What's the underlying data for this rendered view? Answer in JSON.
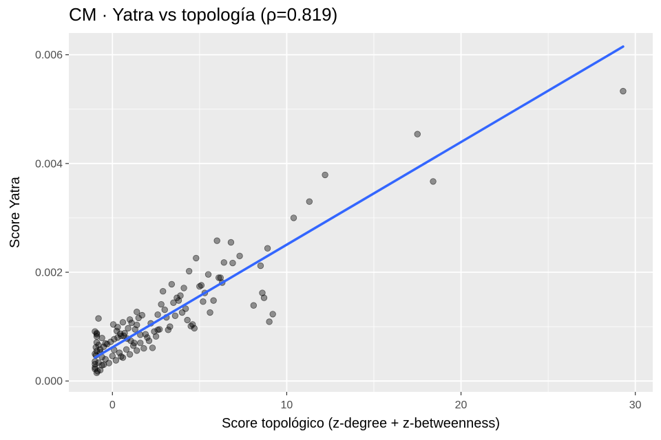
{
  "chart_data": {
    "type": "scatter",
    "title": "CM · Yatra vs topología (ρ=0.819)",
    "xlabel": "Score topológico (z-degree + z-betweenness)",
    "ylabel": "Score Yatra",
    "xlim": [
      -2.5,
      31.0
    ],
    "ylim": [
      -0.0002,
      0.0064
    ],
    "x_ticks": [
      0,
      10,
      20,
      30
    ],
    "x_tick_labels": [
      "0",
      "10",
      "20",
      "30"
    ],
    "y_ticks": [
      0.0,
      0.002,
      0.004,
      0.006
    ],
    "y_tick_labels": [
      "0.000",
      "0.002",
      "0.004",
      "0.006"
    ],
    "grid": true,
    "colors": {
      "panel": "#ebebeb",
      "grid": "#ffffff",
      "points": "#000000",
      "fit_line": "#3366ff"
    },
    "series": [
      {
        "kind": "points",
        "x": [
          29.3,
          17.5,
          18.4,
          12.2,
          11.3,
          10.4,
          9.2,
          9.0,
          8.9,
          8.7,
          8.6,
          8.5,
          8.1,
          6.0,
          6.8,
          7.3,
          6.4,
          6.9,
          6.1,
          5.3,
          5.6,
          5.0,
          6.3,
          4.8,
          4.4,
          4.1,
          3.9,
          3.4,
          3.7,
          2.9,
          4.3,
          4.6,
          4.2,
          3.1,
          2.6,
          5.8,
          5.2,
          5.1,
          4.0,
          3.6,
          3.2,
          2.7,
          2.4,
          2.2,
          1.9,
          1.7,
          1.5,
          1.3,
          1.1,
          0.9,
          0.7,
          0.5,
          0.3,
          0.1,
          -0.1,
          -0.3,
          -0.5,
          -0.7,
          -0.9,
          -1.0,
          2.0,
          1.6,
          1.2,
          0.8,
          0.4,
          0.0,
          -0.4,
          -0.8,
          2.5,
          2.1,
          1.8,
          1.4,
          1.0,
          0.6,
          0.2,
          -0.2,
          -0.6,
          -1.0,
          -0.9,
          -0.8,
          -0.95,
          -1.0,
          -0.85,
          -0.9,
          -1.0,
          -0.7,
          -0.6,
          -0.5,
          0.3,
          0.6,
          1.0,
          1.4,
          3.0,
          2.8,
          3.5,
          3.8,
          4.5,
          5.5,
          6.2,
          2.3,
          -0.95,
          0.05,
          0.25,
          0.45,
          0.65,
          0.85,
          1.05,
          1.25,
          -1.0,
          -0.9,
          -0.8,
          -0.7,
          -1.0,
          -0.9,
          -0.6,
          -0.4,
          0.1,
          0.5,
          1.6,
          2.6,
          3.3,
          4.7,
          -0.9,
          1.4
        ],
        "y": [
          0.00533,
          0.00454,
          0.00367,
          0.00379,
          0.0033,
          0.003,
          0.00123,
          0.00109,
          0.00244,
          0.00153,
          0.00162,
          0.00212,
          0.00139,
          0.00258,
          0.00255,
          0.0023,
          0.00218,
          0.00217,
          0.0019,
          0.00162,
          0.00126,
          0.00174,
          0.00181,
          0.00226,
          0.00202,
          0.00171,
          0.00157,
          0.00178,
          0.00153,
          0.00165,
          0.00112,
          0.00104,
          0.00133,
          0.00117,
          0.00122,
          0.00148,
          0.00146,
          0.00176,
          0.00126,
          0.0012,
          0.00094,
          0.00095,
          0.00091,
          0.00106,
          0.00086,
          0.00121,
          0.00116,
          0.00095,
          0.00107,
          0.00097,
          0.00088,
          0.00083,
          0.0008,
          0.00077,
          0.00072,
          0.00068,
          0.00063,
          0.00058,
          0.00055,
          0.0005,
          0.0008,
          0.0007,
          0.00065,
          0.00058,
          0.00052,
          0.00046,
          0.0004,
          0.00034,
          0.00082,
          0.00074,
          0.0006,
          0.00056,
          0.00049,
          0.00043,
          0.00038,
          0.00033,
          0.00029,
          0.00025,
          0.00088,
          0.00115,
          0.00062,
          0.00031,
          0.00018,
          0.00086,
          0.00022,
          0.0002,
          0.00044,
          0.0003,
          0.00099,
          0.00108,
          0.00113,
          0.00127,
          0.00131,
          0.00141,
          0.00144,
          0.00148,
          0.00101,
          0.00196,
          0.0019,
          0.00061,
          0.00047,
          0.00104,
          0.00092,
          0.00087,
          0.00083,
          0.00078,
          0.00074,
          0.0007,
          0.00036,
          0.00015,
          0.00066,
          0.00053,
          0.00091,
          0.00082,
          0.00079,
          0.00069,
          0.00057,
          0.00045,
          0.00085,
          0.00094,
          0.001,
          0.00097,
          0.00071,
          0.00103
        ]
      },
      {
        "kind": "fit_line",
        "x": [
          -1.0,
          29.3
        ],
        "y": [
          0.00043,
          0.00615
        ]
      }
    ]
  }
}
